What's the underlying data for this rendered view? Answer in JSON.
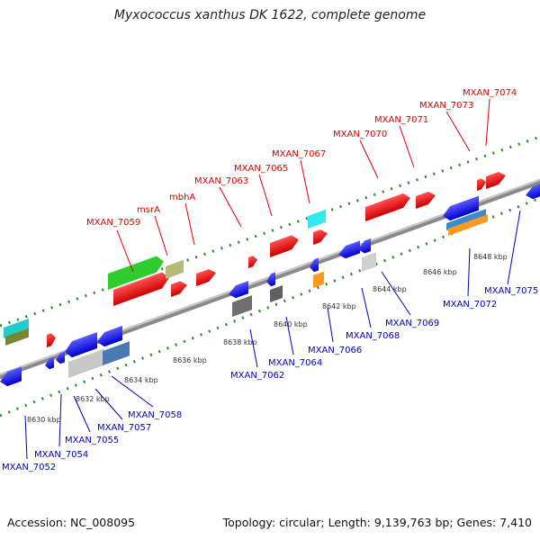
{
  "title": "Myxococcus xanthus DK 1622, complete genome",
  "footer": {
    "accession": "Accession: NC_008095",
    "summary": "Topology: circular; Length: 9,139,763 bp; Genes: 7,410"
  },
  "colors": {
    "upper_strand_label": "#dd0000",
    "lower_strand_label": "#0000bb",
    "backbone": "#9a9a9a",
    "tick": "#228822"
  },
  "kbp_ticks": [
    "8630 kbp",
    "8632 kbp",
    "8634 kbp",
    "8636 kbp",
    "8638 kbp",
    "8640 kbp",
    "8642 kbp",
    "8644 kbp",
    "8646 kbp",
    "8648 kbp"
  ],
  "upper_genes": [
    "MXAN_7059",
    "msrA",
    "mbhA",
    "MXAN_7063",
    "MXAN_7065",
    "MXAN_7067",
    "MXAN_7070",
    "MXAN_7071",
    "MXAN_7073",
    "MXAN_7074"
  ],
  "lower_genes": [
    "MXAN_7052",
    "MXAN_7054",
    "MXAN_7055",
    "MXAN_7057",
    "MXAN_7058",
    "MXAN_7062",
    "MXAN_7064",
    "MXAN_7066",
    "MXAN_7068",
    "MXAN_7069",
    "MXAN_7072",
    "MXAN_7075"
  ]
}
